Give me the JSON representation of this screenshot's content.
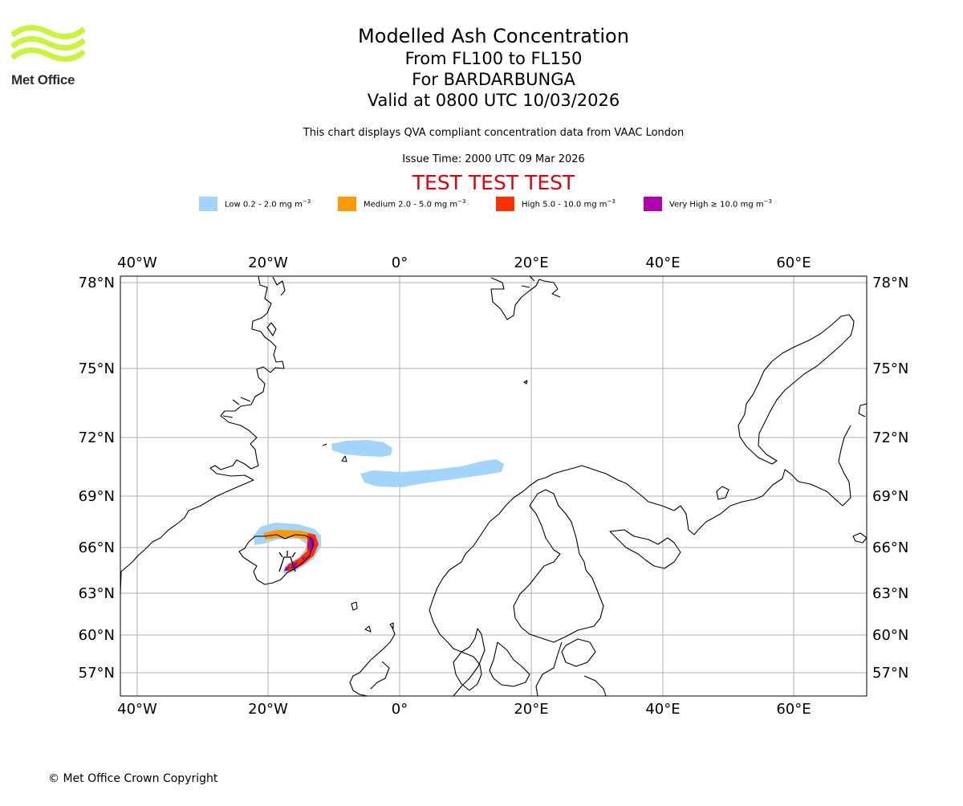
{
  "header": {
    "logo_text": "Met Office",
    "title": "Modelled Ash Concentration",
    "flight_levels": "From FL100 to FL150",
    "volcano": "For BARDARBUNGA",
    "valid_time": "Valid at 0800 UTC 10/03/2026",
    "note": "This chart displays QVA compliant concentration data from VAAC London",
    "issue_time": "Issue Time: 2000 UTC 09 Mar 2026",
    "test_banner": "TEST TEST TEST"
  },
  "legend": [
    {
      "label": "Low 0.2 - 2.0 mg m",
      "color": "#a3d4fc"
    },
    {
      "label": "Medium 2.0 - 5.0 mg m",
      "color": "#fd9a00"
    },
    {
      "label": "High 5.0 - 10.0 mg m",
      "color": "#fe3000"
    },
    {
      "label": "Very High  ≥  10.0 mg m",
      "color": "#b000b0"
    }
  ],
  "legend_unit_exponent": "−3",
  "map": {
    "lon_labels": [
      "40°W",
      "20°W",
      "0°",
      "20°E",
      "40°E",
      "60°E"
    ],
    "lat_labels": [
      "78°N",
      "75°N",
      "72°N",
      "69°N",
      "66°N",
      "63°N",
      "60°N",
      "57°N"
    ],
    "grid_color": "#b0b0b0",
    "coast_color": "#000000"
  },
  "footer": {
    "copyright": "© Met Office Crown Copyright"
  },
  "colors": {
    "logo_green": "#c8f53c",
    "test_red": "#e0000b"
  }
}
